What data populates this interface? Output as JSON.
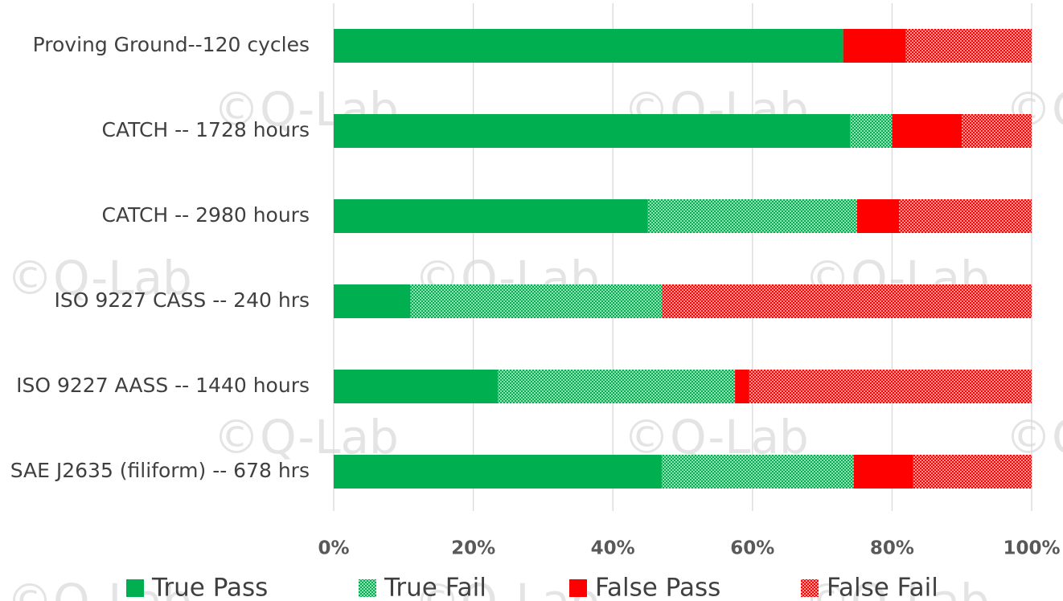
{
  "chart_data": {
    "type": "stacked_barh",
    "watermark": "©Q-Lab",
    "categories": [
      "Proving Ground--120 cycles",
      "CATCH -- 1728 hours",
      "CATCH -- 2980 hours",
      "ISO 9227 CASS -- 240 hrs",
      "ISO 9227 AASS -- 1440 hours",
      "SAE J2635 (filiform) -- 678 hrs"
    ],
    "series": [
      {
        "name": "True Pass",
        "color": "#00b050",
        "values": [
          73,
          74,
          45,
          11,
          23.5,
          47
        ]
      },
      {
        "name": "True Fail",
        "color": "#00b050",
        "hatch": "dots",
        "values": [
          0,
          6,
          30,
          36,
          34,
          27.5
        ]
      },
      {
        "name": "False Pass",
        "color": "#ff0000",
        "values": [
          9,
          10,
          6,
          0,
          2,
          8.5
        ]
      },
      {
        "name": "False Fail",
        "color": "#ff0000",
        "hatch": "dots",
        "values": [
          18,
          10,
          19,
          53,
          40.5,
          17
        ]
      }
    ],
    "xlim": [
      0,
      100
    ],
    "xticks": [
      {
        "value": 0,
        "label": "0%"
      },
      {
        "value": 20,
        "label": "20%"
      },
      {
        "value": 40,
        "label": "40%"
      },
      {
        "value": 60,
        "label": "60%"
      },
      {
        "value": 80,
        "label": "80%"
      },
      {
        "value": 100,
        "label": "100%"
      }
    ],
    "grid": true,
    "legend": "bottom"
  }
}
